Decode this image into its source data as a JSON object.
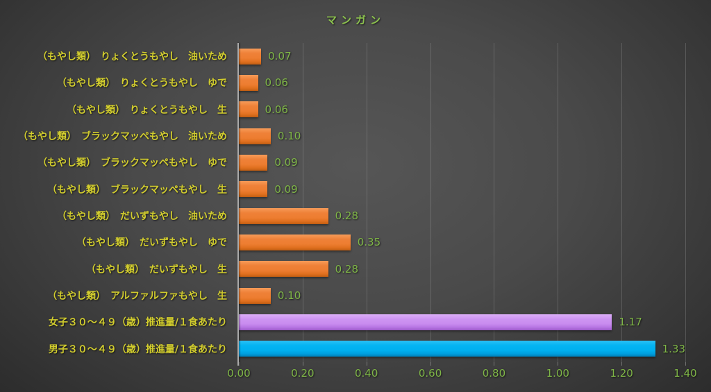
{
  "title": "マンガン",
  "colors": {
    "background_center": "#565656",
    "background_edge": "#222222",
    "title_text": "#8CC24E",
    "category_label_text": "#D2CD2E",
    "value_label_text": "#7FB647",
    "axis_label_text": "#7FB647",
    "gridline": "rgba(255,255,255,0.16)",
    "axis_line": "#ABABAB",
    "bar_orange": "#ED7D31",
    "bar_purple": "#C98CEF",
    "bar_blue": "#00B0F0"
  },
  "chart_data": {
    "type": "bar",
    "orientation": "horizontal",
    "title": "マンガン",
    "xlabel": "",
    "ylabel": "",
    "xlim": [
      0,
      1.4
    ],
    "grid": true,
    "legend": false,
    "x_ticks": [
      "0.00",
      "0.20",
      "0.40",
      "0.60",
      "0.80",
      "1.00",
      "1.20",
      "1.40"
    ],
    "categories": [
      "（もやし類）　りょくとうもやし　油いため",
      "（もやし類）　りょくとうもやし　ゆで",
      "（もやし類）　りょくとうもやし　生",
      "（もやし類）　ブラックマッペもやし　油いため",
      "（もやし類）　ブラックマッペもやし　ゆで",
      "（もやし類）　ブラックマッペもやし　生",
      "（もやし類）　だいずもやし　油いため",
      "（もやし類）　だいずもやし　ゆで",
      "（もやし類）　だいずもやし　生",
      "（もやし類）　アルファルファもやし　生",
      "女子３０～４９（歳）推進量/１食あたり",
      "男子３０～４９（歳）推進量/１食あたり"
    ],
    "values": [
      0.07,
      0.06,
      0.06,
      0.1,
      0.09,
      0.09,
      0.28,
      0.35,
      0.28,
      0.1,
      1.17,
      1.33
    ],
    "value_labels": [
      "0.07",
      "0.06",
      "0.06",
      "0.10",
      "0.09",
      "0.09",
      "0.28",
      "0.35",
      "0.28",
      "0.10",
      "1.17",
      "1.33"
    ],
    "bar_colors": [
      "orange",
      "orange",
      "orange",
      "orange",
      "orange",
      "orange",
      "orange",
      "orange",
      "orange",
      "orange",
      "purple",
      "blue"
    ]
  }
}
